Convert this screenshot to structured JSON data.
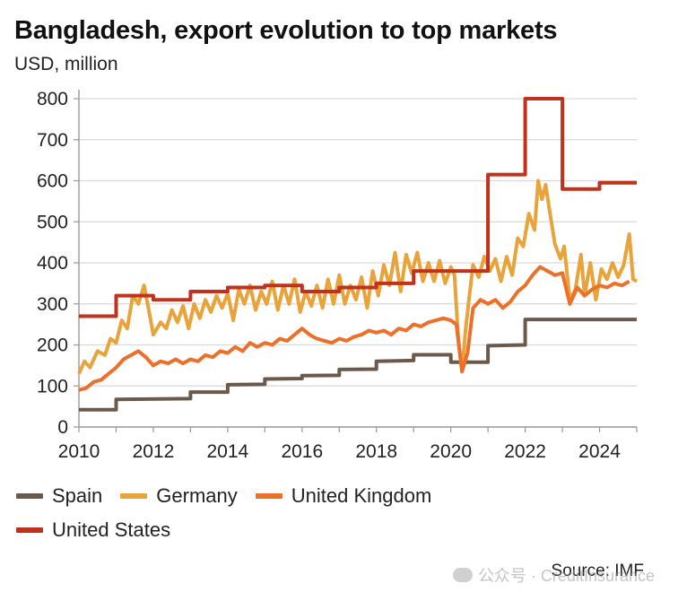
{
  "chart_data": {
    "type": "line",
    "title": "Bangladesh, export evolution to top markets",
    "ylabel": "USD, million",
    "xlabel": "",
    "source": "Source: IMF",
    "xlim": [
      2010,
      2025
    ],
    "ylim": [
      0,
      800
    ],
    "xticks": [
      2010,
      2012,
      2014,
      2016,
      2018,
      2020,
      2022,
      2024
    ],
    "yticks": [
      0,
      100,
      200,
      300,
      400,
      500,
      600,
      700,
      800
    ],
    "grid": "horizontal",
    "legend_position": "bottom",
    "series": [
      {
        "name": "Spain",
        "color": "#6b5a4c",
        "values": [
          [
            2010.0,
            42
          ],
          [
            2011.0,
            42
          ],
          [
            2011.0,
            67
          ],
          [
            2013.0,
            69
          ],
          [
            2013.0,
            85
          ],
          [
            2014.0,
            85
          ],
          [
            2014.0,
            103
          ],
          [
            2015.0,
            104
          ],
          [
            2015.0,
            117
          ],
          [
            2016.0,
            118
          ],
          [
            2016.0,
            125
          ],
          [
            2017.0,
            126
          ],
          [
            2017.0,
            140
          ],
          [
            2018.0,
            141
          ],
          [
            2018.0,
            160
          ],
          [
            2019.0,
            162
          ],
          [
            2019.0,
            176
          ],
          [
            2020.0,
            176
          ],
          [
            2020.0,
            158
          ],
          [
            2021.0,
            158
          ],
          [
            2021.0,
            198
          ],
          [
            2022.0,
            200
          ],
          [
            2022.0,
            262
          ],
          [
            2025.0,
            262
          ]
        ]
      },
      {
        "name": "Germany",
        "color": "#e8a33a",
        "values": [
          [
            2010.0,
            130
          ],
          [
            2010.15,
            160
          ],
          [
            2010.3,
            145
          ],
          [
            2010.5,
            185
          ],
          [
            2010.7,
            175
          ],
          [
            2010.85,
            215
          ],
          [
            2011.0,
            205
          ],
          [
            2011.15,
            260
          ],
          [
            2011.3,
            240
          ],
          [
            2011.45,
            320
          ],
          [
            2011.6,
            300
          ],
          [
            2011.75,
            345
          ],
          [
            2011.9,
            275
          ],
          [
            2012.0,
            225
          ],
          [
            2012.2,
            255
          ],
          [
            2012.35,
            240
          ],
          [
            2012.5,
            285
          ],
          [
            2012.65,
            255
          ],
          [
            2012.8,
            295
          ],
          [
            2012.95,
            240
          ],
          [
            2013.1,
            300
          ],
          [
            2013.25,
            265
          ],
          [
            2013.4,
            310
          ],
          [
            2013.55,
            280
          ],
          [
            2013.7,
            320
          ],
          [
            2013.85,
            290
          ],
          [
            2014.0,
            325
          ],
          [
            2014.15,
            260
          ],
          [
            2014.3,
            335
          ],
          [
            2014.45,
            300
          ],
          [
            2014.6,
            345
          ],
          [
            2014.75,
            285
          ],
          [
            2014.9,
            330
          ],
          [
            2015.05,
            300
          ],
          [
            2015.2,
            355
          ],
          [
            2015.35,
            285
          ],
          [
            2015.5,
            345
          ],
          [
            2015.65,
            300
          ],
          [
            2015.8,
            360
          ],
          [
            2015.95,
            280
          ],
          [
            2016.1,
            330
          ],
          [
            2016.25,
            295
          ],
          [
            2016.4,
            345
          ],
          [
            2016.55,
            290
          ],
          [
            2016.7,
            360
          ],
          [
            2016.85,
            300
          ],
          [
            2017.0,
            370
          ],
          [
            2017.15,
            300
          ],
          [
            2017.3,
            345
          ],
          [
            2017.45,
            310
          ],
          [
            2017.6,
            365
          ],
          [
            2017.75,
            290
          ],
          [
            2017.9,
            380
          ],
          [
            2018.05,
            320
          ],
          [
            2018.2,
            395
          ],
          [
            2018.35,
            345
          ],
          [
            2018.5,
            425
          ],
          [
            2018.65,
            330
          ],
          [
            2018.8,
            420
          ],
          [
            2018.95,
            375
          ],
          [
            2019.1,
            425
          ],
          [
            2019.25,
            355
          ],
          [
            2019.4,
            400
          ],
          [
            2019.55,
            355
          ],
          [
            2019.7,
            405
          ],
          [
            2019.85,
            350
          ],
          [
            2020.0,
            390
          ],
          [
            2020.1,
            370
          ],
          [
            2020.2,
            215
          ],
          [
            2020.3,
            135
          ],
          [
            2020.4,
            240
          ],
          [
            2020.5,
            320
          ],
          [
            2020.6,
            395
          ],
          [
            2020.75,
            365
          ],
          [
            2020.9,
            415
          ],
          [
            2021.05,
            380
          ],
          [
            2021.2,
            410
          ],
          [
            2021.35,
            355
          ],
          [
            2021.5,
            415
          ],
          [
            2021.65,
            370
          ],
          [
            2021.8,
            460
          ],
          [
            2021.95,
            440
          ],
          [
            2022.1,
            520
          ],
          [
            2022.25,
            480
          ],
          [
            2022.35,
            600
          ],
          [
            2022.45,
            555
          ],
          [
            2022.55,
            590
          ],
          [
            2022.65,
            530
          ],
          [
            2022.8,
            445
          ],
          [
            2022.95,
            410
          ],
          [
            2023.05,
            440
          ],
          [
            2023.2,
            310
          ],
          [
            2023.35,
            335
          ],
          [
            2023.5,
            420
          ],
          [
            2023.6,
            320
          ],
          [
            2023.75,
            400
          ],
          [
            2023.9,
            310
          ],
          [
            2024.05,
            385
          ],
          [
            2024.2,
            360
          ],
          [
            2024.35,
            400
          ],
          [
            2024.5,
            365
          ],
          [
            2024.65,
            395
          ],
          [
            2024.8,
            470
          ],
          [
            2024.9,
            360
          ],
          [
            2025.0,
            355
          ]
        ]
      },
      {
        "name": "United Kingdom",
        "color": "#ec6f2a",
        "values": [
          [
            2010.0,
            90
          ],
          [
            2010.2,
            95
          ],
          [
            2010.4,
            110
          ],
          [
            2010.6,
            115
          ],
          [
            2010.8,
            130
          ],
          [
            2011.0,
            145
          ],
          [
            2011.2,
            165
          ],
          [
            2011.4,
            175
          ],
          [
            2011.6,
            185
          ],
          [
            2011.8,
            170
          ],
          [
            2012.0,
            150
          ],
          [
            2012.2,
            160
          ],
          [
            2012.4,
            155
          ],
          [
            2012.6,
            165
          ],
          [
            2012.8,
            155
          ],
          [
            2013.0,
            165
          ],
          [
            2013.2,
            160
          ],
          [
            2013.4,
            175
          ],
          [
            2013.6,
            170
          ],
          [
            2013.8,
            185
          ],
          [
            2014.0,
            180
          ],
          [
            2014.2,
            195
          ],
          [
            2014.4,
            185
          ],
          [
            2014.6,
            205
          ],
          [
            2014.8,
            195
          ],
          [
            2015.0,
            205
          ],
          [
            2015.2,
            200
          ],
          [
            2015.4,
            215
          ],
          [
            2015.6,
            210
          ],
          [
            2015.8,
            225
          ],
          [
            2016.0,
            240
          ],
          [
            2016.2,
            225
          ],
          [
            2016.4,
            215
          ],
          [
            2016.6,
            210
          ],
          [
            2016.8,
            205
          ],
          [
            2017.0,
            215
          ],
          [
            2017.2,
            210
          ],
          [
            2017.4,
            220
          ],
          [
            2017.6,
            225
          ],
          [
            2017.8,
            235
          ],
          [
            2018.0,
            230
          ],
          [
            2018.2,
            235
          ],
          [
            2018.4,
            225
          ],
          [
            2018.6,
            240
          ],
          [
            2018.8,
            235
          ],
          [
            2019.0,
            250
          ],
          [
            2019.2,
            245
          ],
          [
            2019.4,
            255
          ],
          [
            2019.6,
            260
          ],
          [
            2019.8,
            265
          ],
          [
            2020.0,
            260
          ],
          [
            2020.15,
            250
          ],
          [
            2020.3,
            135
          ],
          [
            2020.45,
            180
          ],
          [
            2020.6,
            290
          ],
          [
            2020.8,
            310
          ],
          [
            2021.0,
            300
          ],
          [
            2021.2,
            310
          ],
          [
            2021.4,
            290
          ],
          [
            2021.6,
            305
          ],
          [
            2021.8,
            330
          ],
          [
            2022.0,
            345
          ],
          [
            2022.2,
            370
          ],
          [
            2022.4,
            390
          ],
          [
            2022.6,
            380
          ],
          [
            2022.8,
            370
          ],
          [
            2023.0,
            375
          ],
          [
            2023.2,
            300
          ],
          [
            2023.4,
            340
          ],
          [
            2023.6,
            320
          ],
          [
            2023.8,
            335
          ],
          [
            2024.0,
            345
          ],
          [
            2024.2,
            340
          ],
          [
            2024.4,
            350
          ],
          [
            2024.6,
            345
          ],
          [
            2024.8,
            355
          ]
        ]
      },
      {
        "name": "United States",
        "color": "#c0321b",
        "values": [
          [
            2010.0,
            270
          ],
          [
            2011.0,
            270
          ],
          [
            2011.0,
            320
          ],
          [
            2012.0,
            320
          ],
          [
            2012.0,
            310
          ],
          [
            2013.0,
            310
          ],
          [
            2013.0,
            330
          ],
          [
            2014.0,
            330
          ],
          [
            2014.0,
            340
          ],
          [
            2015.0,
            340
          ],
          [
            2015.0,
            345
          ],
          [
            2016.0,
            345
          ],
          [
            2016.0,
            330
          ],
          [
            2017.0,
            330
          ],
          [
            2017.0,
            340
          ],
          [
            2018.0,
            340
          ],
          [
            2018.0,
            350
          ],
          [
            2019.0,
            350
          ],
          [
            2019.0,
            380
          ],
          [
            2020.0,
            380
          ],
          [
            2021.0,
            380
          ],
          [
            2021.0,
            615
          ],
          [
            2022.0,
            615
          ],
          [
            2022.0,
            800
          ],
          [
            2023.0,
            800
          ],
          [
            2023.0,
            580
          ],
          [
            2024.0,
            580
          ],
          [
            2024.0,
            595
          ],
          [
            2025.0,
            595
          ]
        ]
      }
    ]
  },
  "watermark": {
    "text": "公众号 · CreditInsurance"
  }
}
